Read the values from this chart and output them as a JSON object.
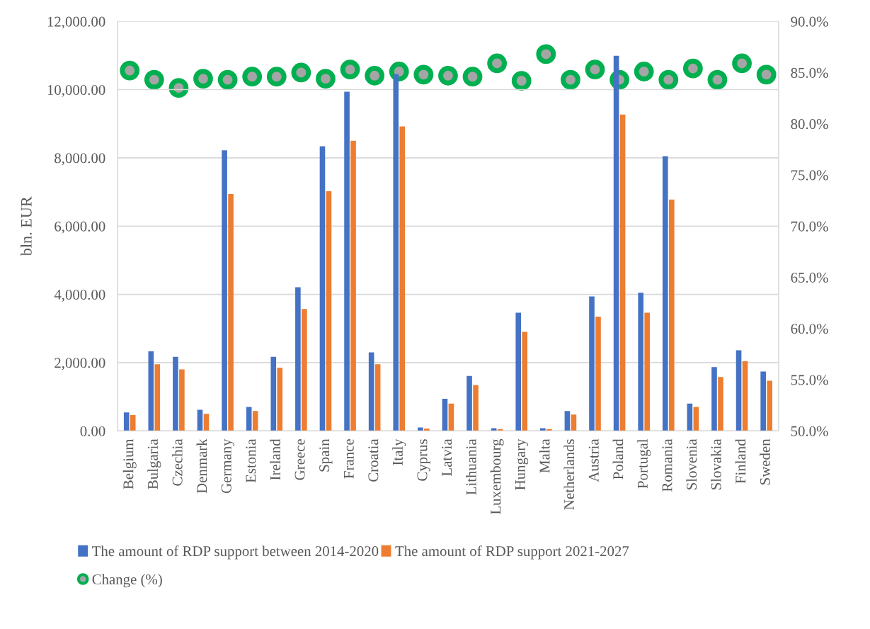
{
  "chart_data": {
    "type": "bar",
    "ylabel": "bln. EUR",
    "categories": [
      "Belgium",
      "Bulgaria",
      "Czechia",
      "Denmark",
      "Germany",
      "Estonia",
      "Ireland",
      "Greece",
      "Spain",
      "France",
      "Croatia",
      "Italy",
      "Cyprus",
      "Latvia",
      "Lithuania",
      "Luxembourg",
      "Hungary",
      "Malta",
      "Netherlands",
      "Austria",
      "Poland",
      "Portugal",
      "Romania",
      "Slovenia",
      "Slovakia",
      "Finland",
      "Sweden"
    ],
    "series": [
      {
        "name": "The amount of RDP support between 2014-2020",
        "color": "#4472c4",
        "values": [
          540,
          2330,
          2170,
          620,
          8220,
          700,
          2170,
          4210,
          8340,
          9940,
          2300,
          10460,
          100,
          940,
          1610,
          80,
          3460,
          80,
          580,
          3940,
          10990,
          4050,
          8050,
          800,
          1870,
          2360,
          1740
        ]
      },
      {
        "name": "The amount of RDP support 2021-2027",
        "color": "#ed7d31",
        "values": [
          460,
          1950,
          1800,
          500,
          6940,
          580,
          1850,
          3570,
          7020,
          8500,
          1950,
          8920,
          70,
          800,
          1340,
          50,
          2900,
          50,
          480,
          3350,
          9270,
          3460,
          6780,
          700,
          1580,
          2040,
          1470
        ]
      },
      {
        "name": "Change (%)",
        "type": "scatter",
        "axis": "y2",
        "color": "#00b050",
        "marker": "circle",
        "values": [
          85.2,
          84.3,
          83.5,
          84.4,
          84.3,
          84.6,
          84.6,
          85.0,
          84.4,
          85.3,
          84.7,
          85.1,
          84.8,
          84.7,
          84.6,
          85.9,
          84.2,
          86.8,
          84.3,
          85.3,
          84.3,
          85.1,
          84.3,
          85.4,
          84.3,
          85.9,
          84.8
        ]
      }
    ],
    "ylim": [
      0,
      12000
    ],
    "yticks": [
      {
        "value": 0,
        "label": "0.00"
      },
      {
        "value": 2000,
        "label": "2,000.00"
      },
      {
        "value": 4000,
        "label": "4,000.00"
      },
      {
        "value": 6000,
        "label": "6,000.00"
      },
      {
        "value": 8000,
        "label": "8,000.00"
      },
      {
        "value": 10000,
        "label": "10,000.00"
      },
      {
        "value": 12000,
        "label": "12,000.00"
      }
    ],
    "y2lim": [
      50,
      90
    ],
    "y2ticks": [
      {
        "value": 50,
        "label": "50.0%"
      },
      {
        "value": 55,
        "label": "55.0%"
      },
      {
        "value": 60,
        "label": "60.0%"
      },
      {
        "value": 65,
        "label": "65.0%"
      },
      {
        "value": 70,
        "label": "70.0%"
      },
      {
        "value": 75,
        "label": "75.0%"
      },
      {
        "value": 80,
        "label": "80.0%"
      },
      {
        "value": 85,
        "label": "85.0%"
      },
      {
        "value": 90,
        "label": "90.0%"
      }
    ],
    "grid": "y",
    "legend": "bottom"
  }
}
